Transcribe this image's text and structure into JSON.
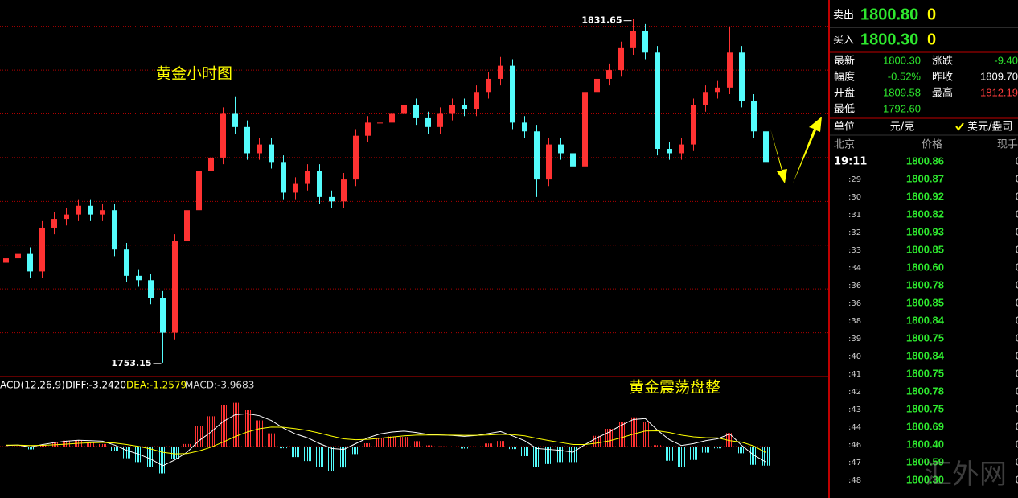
{
  "chart_data": {
    "type": "candlestick",
    "annotations": [
      "黄金小时图",
      "黄金震荡盘整"
    ],
    "open": [
      1776,
      1777,
      1778,
      1774,
      1784,
      1786,
      1787,
      1789,
      1787,
      1788,
      1779,
      1773,
      1772,
      1768,
      1760,
      1781,
      1788,
      1797,
      1800,
      1810,
      1807,
      1801,
      1803,
      1799,
      1792,
      1794,
      1797,
      1791,
      1790,
      1795,
      1805,
      1808,
      1808,
      1810,
      1812,
      1809,
      1807,
      1810,
      1812,
      1811,
      1815,
      1818,
      1821,
      1808,
      1806,
      1795,
      1803,
      1801,
      1798,
      1815,
      1818,
      1820,
      1825,
      1829,
      1824,
      1802,
      1801,
      1803,
      1812,
      1815,
      1816,
      1824,
      1813,
      1806
    ],
    "high": [
      1778.5,
      1779.5,
      1779.5,
      1785.5,
      1787.5,
      1788.5,
      1790.5,
      1790.5,
      1789.5,
      1789.5,
      1780.5,
      1774.5,
      1773.5,
      1769.5,
      1782.5,
      1789.5,
      1798.5,
      1801.5,
      1811.5,
      1814,
      1808.5,
      1804.5,
      1804.5,
      1800.5,
      1795.5,
      1798.5,
      1798.5,
      1792.5,
      1796.5,
      1806.5,
      1809.5,
      1809.5,
      1811.5,
      1813.5,
      1813.5,
      1810.5,
      1811.5,
      1813.5,
      1813.5,
      1816.5,
      1819.5,
      1823,
      1822.5,
      1809.5,
      1807.5,
      1804.5,
      1804.5,
      1802.5,
      1816.5,
      1819.5,
      1821.5,
      1826.5,
      1831.65,
      1830.5,
      1825.5,
      1803.5,
      1804.5,
      1813.5,
      1816.5,
      1817.5,
      1830,
      1825.5,
      1814.5,
      1807.5
    ],
    "low": [
      1774.5,
      1775.5,
      1772.5,
      1772.5,
      1782.5,
      1784.5,
      1785.5,
      1785.5,
      1785.5,
      1777.5,
      1771.5,
      1770.5,
      1766.5,
      1753.15,
      1758.5,
      1779.5,
      1786.5,
      1795.5,
      1798.5,
      1805.5,
      1799.5,
      1799.5,
      1797.5,
      1790.5,
      1790.5,
      1792.5,
      1789.5,
      1788.5,
      1788.5,
      1793.5,
      1803.5,
      1806.5,
      1806.5,
      1808.5,
      1807.5,
      1805.5,
      1805.5,
      1808.5,
      1809.5,
      1809.5,
      1813.5,
      1816.5,
      1806.5,
      1804.5,
      1791,
      1793.5,
      1799.5,
      1796.5,
      1796.5,
      1813.5,
      1816.5,
      1818.5,
      1823.5,
      1822.5,
      1800.5,
      1799.5,
      1799.5,
      1801.5,
      1810.5,
      1813.5,
      1814.5,
      1811.5,
      1804.5,
      1795
    ],
    "close": [
      1777,
      1778,
      1774,
      1784,
      1786,
      1787,
      1789,
      1787,
      1788,
      1779,
      1773,
      1772,
      1768,
      1760,
      1781,
      1788,
      1797,
      1800,
      1810,
      1807,
      1801,
      1803,
      1799,
      1792,
      1794,
      1797,
      1791,
      1790,
      1795,
      1805,
      1808,
      1808,
      1810,
      1812,
      1809,
      1807,
      1810,
      1812,
      1811,
      1815,
      1818,
      1821,
      1808,
      1806,
      1795,
      1803,
      1801,
      1798,
      1815,
      1818,
      1820,
      1825,
      1829,
      1824,
      1802,
      1801,
      1803,
      1812,
      1815,
      1816,
      1824,
      1813,
      1806,
      1799
    ],
    "up_color": "#ff3232",
    "down_color": "#54fcfc",
    "ylim": [
      1750,
      1836
    ],
    "grid_lines": [
      1760,
      1770,
      1780,
      1790,
      1800,
      1810,
      1820,
      1830
    ],
    "grid_color": "#b00000",
    "macd": {
      "header": [
        "ACD(12,26,9)",
        "DIFF:-3.2420",
        "DEA:-1.2579",
        "MACD:-3.9683"
      ],
      "ylim": [
        -10.7,
        14.2
      ],
      "histogram": [
        -0.16,
        0.04,
        -0.6,
        0.32,
        0.9,
        1.2,
        1.28,
        0.86,
        0.52,
        -0.86,
        -2.44,
        -3.24,
        -4.2,
        -5.6,
        -2.56,
        0.52,
        4.26,
        6.28,
        8.54,
        9.08,
        7.58,
        5.42,
        2.74,
        -0.36,
        -2.2,
        -3.04,
        -4.36,
        -5.08,
        -4.38,
        -1.58,
        0.66,
        1.8,
        2.08,
        1.98,
        1.1,
        0.24,
        0.04,
        -0.12,
        -0.42,
        -0.02,
        0.62,
        1.14,
        -0.52,
        -2.02,
        -4.18,
        -3.66,
        -3.24,
        -3.24,
        -0.04,
        2.2,
        3.68,
        5.18,
        6.06,
        5.16,
        0.28,
        -2.98,
        -4.3,
        -2.8,
        -1.28,
        -0.38,
        2.8,
        -1.4,
        -3.8,
        -3.9683
      ],
      "series": [
        {
          "name": "DIFF",
          "color": "#ffffff",
          "values": [
            0.2,
            0.3,
            -0.1,
            0.4,
            0.8,
            1.1,
            1.3,
            1.2,
            1.1,
            0.3,
            -0.8,
            -1.6,
            -2.6,
            -4.0,
            -2.8,
            -1.2,
            1.2,
            3.0,
            5.2,
            6.6,
            6.8,
            6.4,
            5.4,
            3.8,
            2.6,
            1.8,
            0.6,
            -0.4,
            -0.6,
            0.6,
            1.8,
            2.6,
            3.0,
            3.2,
            2.9,
            2.5,
            2.4,
            2.3,
            2.1,
            2.3,
            2.7,
            3.1,
            2.2,
            1.2,
            -0.4,
            -0.6,
            -0.8,
            -1.2,
            0.4,
            1.8,
            3.0,
            4.4,
            5.6,
            5.8,
            3.4,
            1.4,
            0.2,
            0.6,
            1.2,
            1.6,
            2.6,
            0.2,
            -1.8,
            -3.242
          ]
        },
        {
          "name": "DEA",
          "color": "#ffff00",
          "values": [
            0.28,
            0.28,
            0.2,
            0.24,
            0.35,
            0.5,
            0.66,
            0.77,
            0.84,
            0.73,
            0.42,
            0.02,
            -0.5,
            -1.2,
            -1.52,
            -1.46,
            -0.93,
            -0.14,
            0.93,
            2.06,
            3.01,
            3.69,
            4.03,
            3.98,
            3.7,
            3.32,
            2.78,
            2.14,
            1.59,
            1.39,
            1.47,
            1.7,
            1.96,
            2.21,
            2.35,
            2.38,
            2.38,
            2.36,
            2.31,
            2.31,
            2.39,
            2.53,
            2.46,
            2.21,
            1.69,
            1.23,
            0.82,
            0.42,
            0.42,
            0.7,
            1.16,
            1.81,
            2.57,
            3.22,
            3.26,
            2.89,
            2.35,
            2.0,
            1.84,
            1.79,
            1.2,
            0.9,
            0.1,
            -1.2579
          ]
        }
      ]
    }
  },
  "quote": {
    "sell": {
      "label": "卖出",
      "price": "1800.80",
      "qty": "0"
    },
    "buy": {
      "label": "买入",
      "price": "1800.30",
      "qty": "0"
    },
    "stats": [
      [
        "最新",
        "1800.30",
        "涨跌",
        "-9.40"
      ],
      [
        "幅度",
        "-0.52%",
        "昨收",
        "1809.70"
      ],
      [
        "开盘",
        "1809.58",
        "最高",
        "1812.19"
      ],
      [
        "最低",
        "1792.60"
      ]
    ],
    "unit": [
      "单位",
      "元/克",
      "美元/盎司"
    ],
    "ticks_header": [
      "北京",
      "价格",
      "现手"
    ],
    "ticks": [
      [
        "19:11",
        "1800.86",
        "0"
      ],
      [
        ":29",
        "1800.87",
        "0"
      ],
      [
        ":30",
        "1800.92",
        "0"
      ],
      [
        ":31",
        "1800.82",
        "0"
      ],
      [
        ":32",
        "1800.93",
        "0"
      ],
      [
        ":33",
        "1800.85",
        "0"
      ],
      [
        ":34",
        "1800.60",
        "0"
      ],
      [
        ":36",
        "1800.78",
        "0"
      ],
      [
        ":36",
        "1800.85",
        "0"
      ],
      [
        ":38",
        "1800.84",
        "0"
      ],
      [
        ":39",
        "1800.75",
        "0"
      ],
      [
        ":40",
        "1800.84",
        "0"
      ],
      [
        ":41",
        "1800.75",
        "0"
      ],
      [
        ":42",
        "1800.78",
        "0"
      ],
      [
        ":43",
        "1800.75",
        "0"
      ],
      [
        ":44",
        "1800.69",
        "0"
      ],
      [
        ":46",
        "1800.40",
        "0"
      ],
      [
        ":47",
        "1800.59",
        "0"
      ],
      [
        ":48",
        "1800.30",
        "0"
      ]
    ]
  },
  "watermark": "汇外网"
}
